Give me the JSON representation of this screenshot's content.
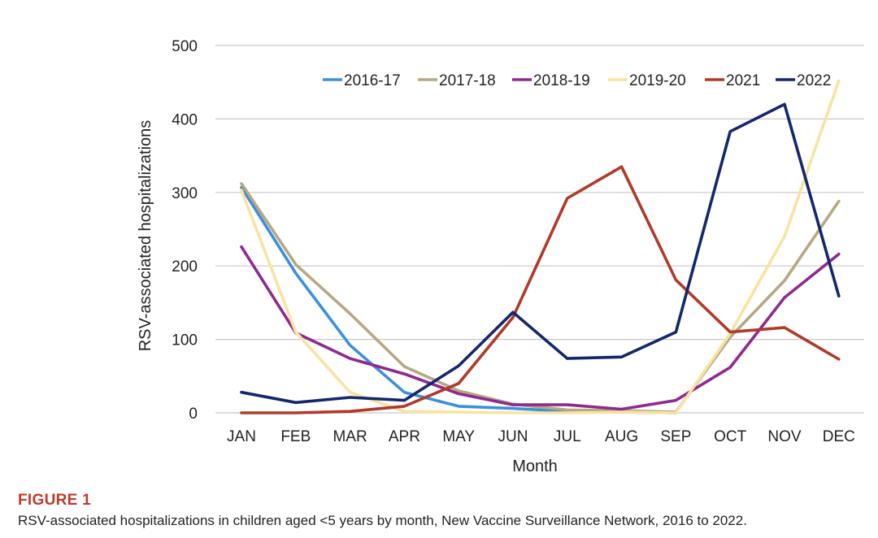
{
  "chart_data": {
    "type": "line",
    "categories": [
      "JAN",
      "FEB",
      "MAR",
      "APR",
      "MAY",
      "JUN",
      "JUL",
      "AUG",
      "SEP",
      "OCT",
      "NOV",
      "DEC"
    ],
    "xlabel": "Month",
    "ylabel": "RSV-associated hospitalizations",
    "ylim": [
      0,
      500
    ],
    "yticks": [
      0,
      100,
      200,
      300,
      400,
      500
    ],
    "grid": true,
    "legend_position": "top",
    "series": [
      {
        "name": "2016-17",
        "color": "#3a8fe0",
        "values": [
          307,
          190,
          92,
          28,
          9,
          6,
          2,
          1,
          0,
          null,
          null,
          null
        ]
      },
      {
        "name": "2017-18",
        "color": "#b5a882",
        "values": [
          312,
          202,
          135,
          63,
          30,
          12,
          4,
          3,
          1,
          103,
          180,
          288
        ]
      },
      {
        "name": "2018-19",
        "color": "#8e2a8f",
        "values": [
          226,
          109,
          74,
          53,
          26,
          11,
          11,
          5,
          17,
          62,
          157,
          216
        ]
      },
      {
        "name": "2019-20",
        "color": "#f8e3a1",
        "values": [
          303,
          110,
          28,
          2,
          1,
          0,
          0,
          1,
          0,
          108,
          240,
          452
        ]
      },
      {
        "name": "2021",
        "color": "#b03a2a",
        "values": [
          0,
          0,
          2,
          9,
          40,
          130,
          292,
          335,
          181,
          110,
          116,
          73
        ]
      },
      {
        "name": "2022",
        "color": "#13276a",
        "values": [
          28,
          14,
          21,
          17,
          64,
          137,
          74,
          76,
          110,
          383,
          420,
          159
        ]
      }
    ]
  },
  "figure": {
    "label": "FIGURE 1",
    "caption": "RSV-associated hospitalizations in children aged <5 years by month, New Vaccine Surveillance Network, 2016 to 2022."
  }
}
